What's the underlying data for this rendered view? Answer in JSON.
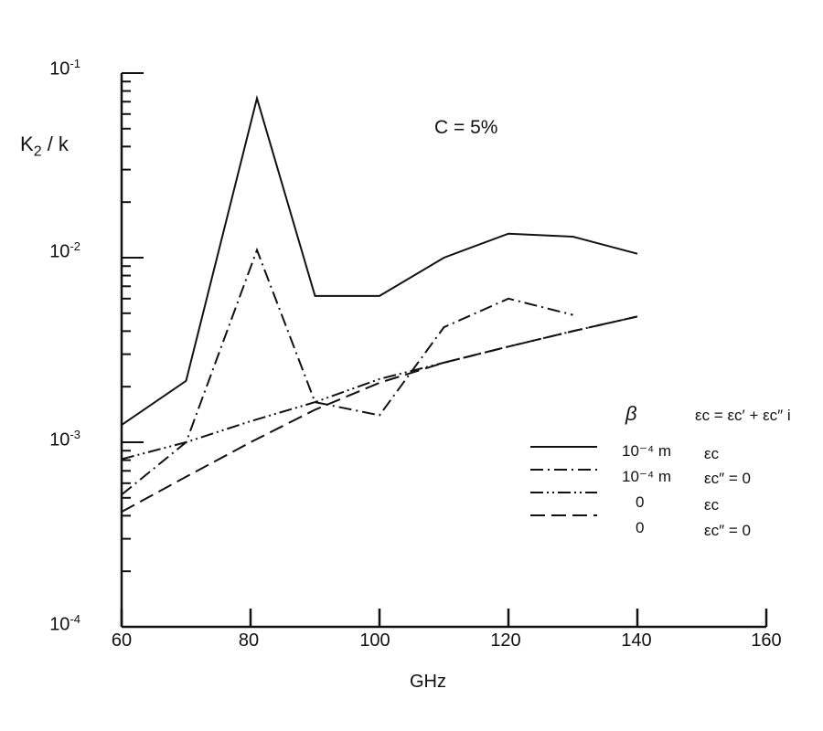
{
  "chart_data": {
    "type": "line",
    "title": "",
    "annotation": "C = 5%",
    "xlabel": "GHz",
    "ylabel": "K2 / k",
    "xscale": "linear",
    "yscale": "log",
    "xlim": [
      60,
      160
    ],
    "ylim": [
      0.0001,
      0.1
    ],
    "xticks": [
      60,
      80,
      100,
      120,
      140,
      160
    ],
    "yticks": [
      "10^-4",
      "10^-3",
      "10^-2",
      "10^-1"
    ],
    "grid": false,
    "legend_position": "right-middle",
    "legend_header": {
      "beta": "β",
      "epsilon": "εc = εc′ + εc″ i"
    },
    "series": [
      {
        "name": "β = 10^-4 m, εc",
        "style": "solid",
        "x": [
          60,
          70,
          81,
          90,
          100,
          110,
          120,
          130,
          140
        ],
        "values": [
          0.00124,
          0.00215,
          0.073,
          0.0062,
          0.0062,
          0.01,
          0.0135,
          0.013,
          0.0105
        ]
      },
      {
        "name": "β = 10^-4 m, εc″ = 0",
        "style": "dash-dot",
        "x": [
          60,
          70,
          81,
          90,
          100,
          110,
          120,
          130
        ],
        "values": [
          0.00052,
          0.001,
          0.011,
          0.00165,
          0.0014,
          0.0042,
          0.006,
          0.0049
        ]
      },
      {
        "name": "β = 0, εc",
        "style": "dash-dot-dot",
        "x": [
          60,
          70,
          80,
          90,
          100,
          110,
          120,
          130,
          140
        ],
        "values": [
          0.00081,
          0.001,
          0.0013,
          0.00165,
          0.0022,
          0.0027,
          0.0033,
          0.004,
          0.0048
        ]
      },
      {
        "name": "β = 0, εc″ = 0",
        "style": "dashed",
        "x": [
          60,
          70,
          80,
          90,
          100,
          110,
          120,
          130,
          140
        ],
        "values": [
          0.00042,
          0.00065,
          0.001,
          0.0015,
          0.0021,
          0.0027,
          0.0033,
          0.004,
          0.0048
        ]
      }
    ]
  },
  "labels": {
    "ylabel_main": "K",
    "ylabel_sub": "2",
    "ylabel_tail": " / k",
    "annotation": "C = 5%",
    "xlabel": "GHz",
    "xticks": [
      "60",
      "80",
      "100",
      "120",
      "140",
      "160"
    ],
    "ytick_base": "10",
    "yticks_exp": [
      "-1",
      "-2",
      "-3",
      "-4"
    ],
    "legend_beta": "β",
    "legend_eq": "εc = εc′ + εc″ i",
    "legend_rows": [
      {
        "beta": "10⁻⁴ m",
        "eps": "εc"
      },
      {
        "beta": "10⁻⁴ m",
        "eps": "εc″ = 0"
      },
      {
        "beta": "0",
        "eps": "εc"
      },
      {
        "beta": "0",
        "eps": "εc″ = 0"
      }
    ]
  }
}
